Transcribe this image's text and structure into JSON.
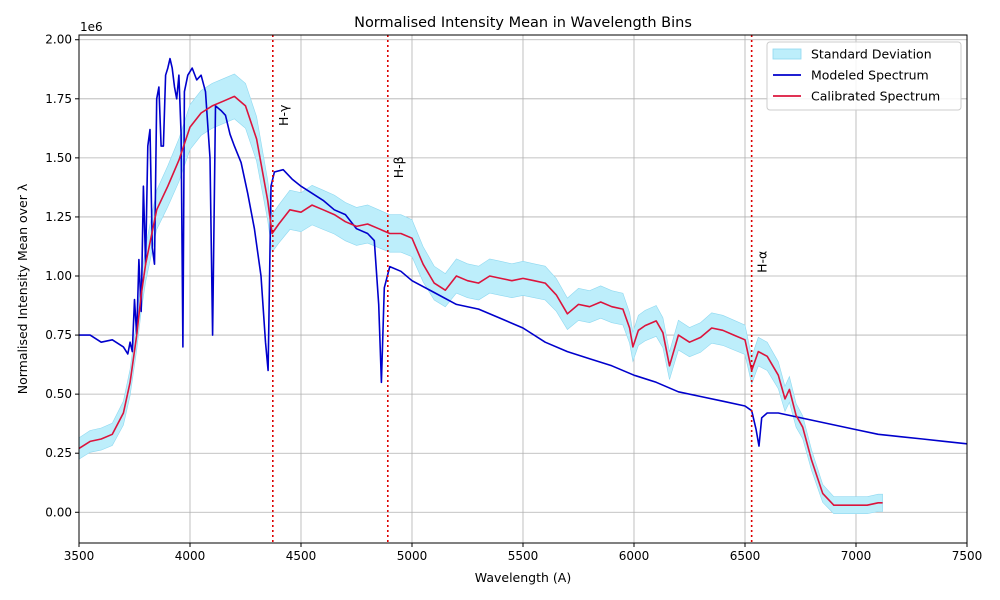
{
  "chart_data": {
    "type": "line",
    "title": "Normalised Intensity Mean in Wavelength Bins",
    "xlabel": "Wavelength (A)",
    "ylabel": "Normalised Intensity Mean over λ",
    "y_offset_label": "1e6",
    "xlim": [
      3500,
      7500
    ],
    "ylim": [
      -0.13,
      2.02
    ],
    "x_ticks": [
      3500,
      4000,
      4500,
      5000,
      5500,
      6000,
      6500,
      7000,
      7500
    ],
    "x_tick_labels": [
      "3500",
      "4000",
      "4500",
      "5000",
      "5500",
      "6000",
      "6500",
      "7000",
      "7500"
    ],
    "y_ticks": [
      0.0,
      0.25,
      0.5,
      0.75,
      1.0,
      1.25,
      1.5,
      1.75,
      2.0
    ],
    "y_tick_labels": [
      "0.00",
      "0.25",
      "0.50",
      "0.75",
      "1.00",
      "1.25",
      "1.50",
      "1.75",
      "2.00"
    ],
    "grid": true,
    "legend_position": "top-right",
    "legend": [
      "Standard Deviation",
      "Modeled Spectrum",
      "Calibrated Spectrum"
    ],
    "colors": {
      "std_fill": "#bdeefb",
      "std_edge": "#8fd8f0",
      "modeled": "#0000cc",
      "calibrated": "#dc143c",
      "lines": "#dd0000",
      "grid": "#b0b0b0"
    },
    "reference_lines": [
      {
        "x": 4373,
        "label": "H-γ",
        "label_y": 1.68
      },
      {
        "x": 4891,
        "label": "H-β",
        "label_y": 1.46
      },
      {
        "x": 6530,
        "label": "H-α",
        "label_y": 1.06
      }
    ],
    "series": [
      {
        "name": "Calibrated Spectrum",
        "x": [
          3500,
          3550,
          3600,
          3650,
          3700,
          3730,
          3760,
          3780,
          3800,
          3850,
          3900,
          3950,
          4000,
          4050,
          4100,
          4150,
          4200,
          4250,
          4300,
          4350,
          4370,
          4400,
          4450,
          4500,
          4550,
          4600,
          4650,
          4700,
          4750,
          4800,
          4850,
          4900,
          4950,
          5000,
          5050,
          5100,
          5150,
          5200,
          5250,
          5300,
          5350,
          5400,
          5450,
          5500,
          5550,
          5600,
          5650,
          5700,
          5750,
          5800,
          5850,
          5900,
          5950,
          5980,
          5995,
          6020,
          6050,
          6100,
          6130,
          6160,
          6200,
          6250,
          6300,
          6350,
          6400,
          6450,
          6500,
          6530,
          6560,
          6600,
          6650,
          6680,
          6700,
          6730,
          6760,
          6800,
          6850,
          6900,
          6950,
          7000,
          7050,
          7100,
          7120
        ],
        "values": [
          0.27,
          0.3,
          0.31,
          0.33,
          0.42,
          0.55,
          0.75,
          0.92,
          1.05,
          1.28,
          1.38,
          1.49,
          1.63,
          1.69,
          1.72,
          1.74,
          1.76,
          1.72,
          1.58,
          1.32,
          1.18,
          1.22,
          1.28,
          1.27,
          1.3,
          1.28,
          1.26,
          1.23,
          1.21,
          1.22,
          1.2,
          1.18,
          1.18,
          1.16,
          1.05,
          0.97,
          0.94,
          1.0,
          0.98,
          0.97,
          1.0,
          0.99,
          0.98,
          0.99,
          0.98,
          0.97,
          0.92,
          0.84,
          0.88,
          0.87,
          0.89,
          0.87,
          0.86,
          0.78,
          0.7,
          0.77,
          0.79,
          0.81,
          0.76,
          0.62,
          0.75,
          0.72,
          0.74,
          0.78,
          0.77,
          0.75,
          0.73,
          0.6,
          0.68,
          0.66,
          0.58,
          0.48,
          0.52,
          0.41,
          0.36,
          0.22,
          0.08,
          0.03,
          0.03,
          0.03,
          0.03,
          0.04,
          0.04
        ]
      },
      {
        "name": "Modeled Spectrum",
        "x": [
          3500,
          3550,
          3600,
          3650,
          3700,
          3720,
          3730,
          3740,
          3750,
          3760,
          3770,
          3780,
          3790,
          3800,
          3810,
          3820,
          3830,
          3840,
          3850,
          3860,
          3870,
          3880,
          3890,
          3900,
          3910,
          3920,
          3930,
          3940,
          3950,
          3960,
          3968,
          3975,
          3990,
          4010,
          4030,
          4050,
          4070,
          4090,
          4102,
          4115,
          4140,
          4160,
          4180,
          4200,
          4230,
          4260,
          4290,
          4320,
          4340,
          4352,
          4365,
          4380,
          4420,
          4460,
          4500,
          4550,
          4600,
          4650,
          4700,
          4750,
          4800,
          4830,
          4850,
          4862,
          4875,
          4900,
          4950,
          5000,
          5100,
          5200,
          5300,
          5400,
          5500,
          5600,
          5700,
          5800,
          5900,
          6000,
          6100,
          6200,
          6300,
          6400,
          6500,
          6530,
          6550,
          6563,
          6575,
          6600,
          6650,
          6700,
          6800,
          6900,
          7000,
          7100,
          7200,
          7300,
          7400,
          7500
        ],
        "values": [
          0.75,
          0.75,
          0.72,
          0.73,
          0.7,
          0.67,
          0.72,
          0.68,
          0.9,
          0.75,
          1.07,
          0.85,
          1.38,
          1.05,
          1.55,
          1.62,
          1.12,
          1.05,
          1.75,
          1.8,
          1.55,
          1.55,
          1.85,
          1.88,
          1.92,
          1.88,
          1.8,
          1.75,
          1.85,
          1.6,
          0.7,
          1.78,
          1.85,
          1.88,
          1.83,
          1.85,
          1.78,
          1.5,
          0.75,
          1.72,
          1.7,
          1.68,
          1.6,
          1.55,
          1.48,
          1.35,
          1.2,
          1.0,
          0.72,
          0.6,
          1.38,
          1.44,
          1.45,
          1.41,
          1.38,
          1.35,
          1.32,
          1.28,
          1.26,
          1.2,
          1.18,
          1.15,
          0.88,
          0.55,
          0.95,
          1.04,
          1.02,
          0.98,
          0.93,
          0.88,
          0.86,
          0.82,
          0.78,
          0.72,
          0.68,
          0.65,
          0.62,
          0.58,
          0.55,
          0.51,
          0.49,
          0.47,
          0.45,
          0.43,
          0.35,
          0.28,
          0.4,
          0.42,
          0.42,
          0.41,
          0.39,
          0.37,
          0.35,
          0.33,
          0.32,
          0.31,
          0.3,
          0.29
        ]
      }
    ]
  }
}
